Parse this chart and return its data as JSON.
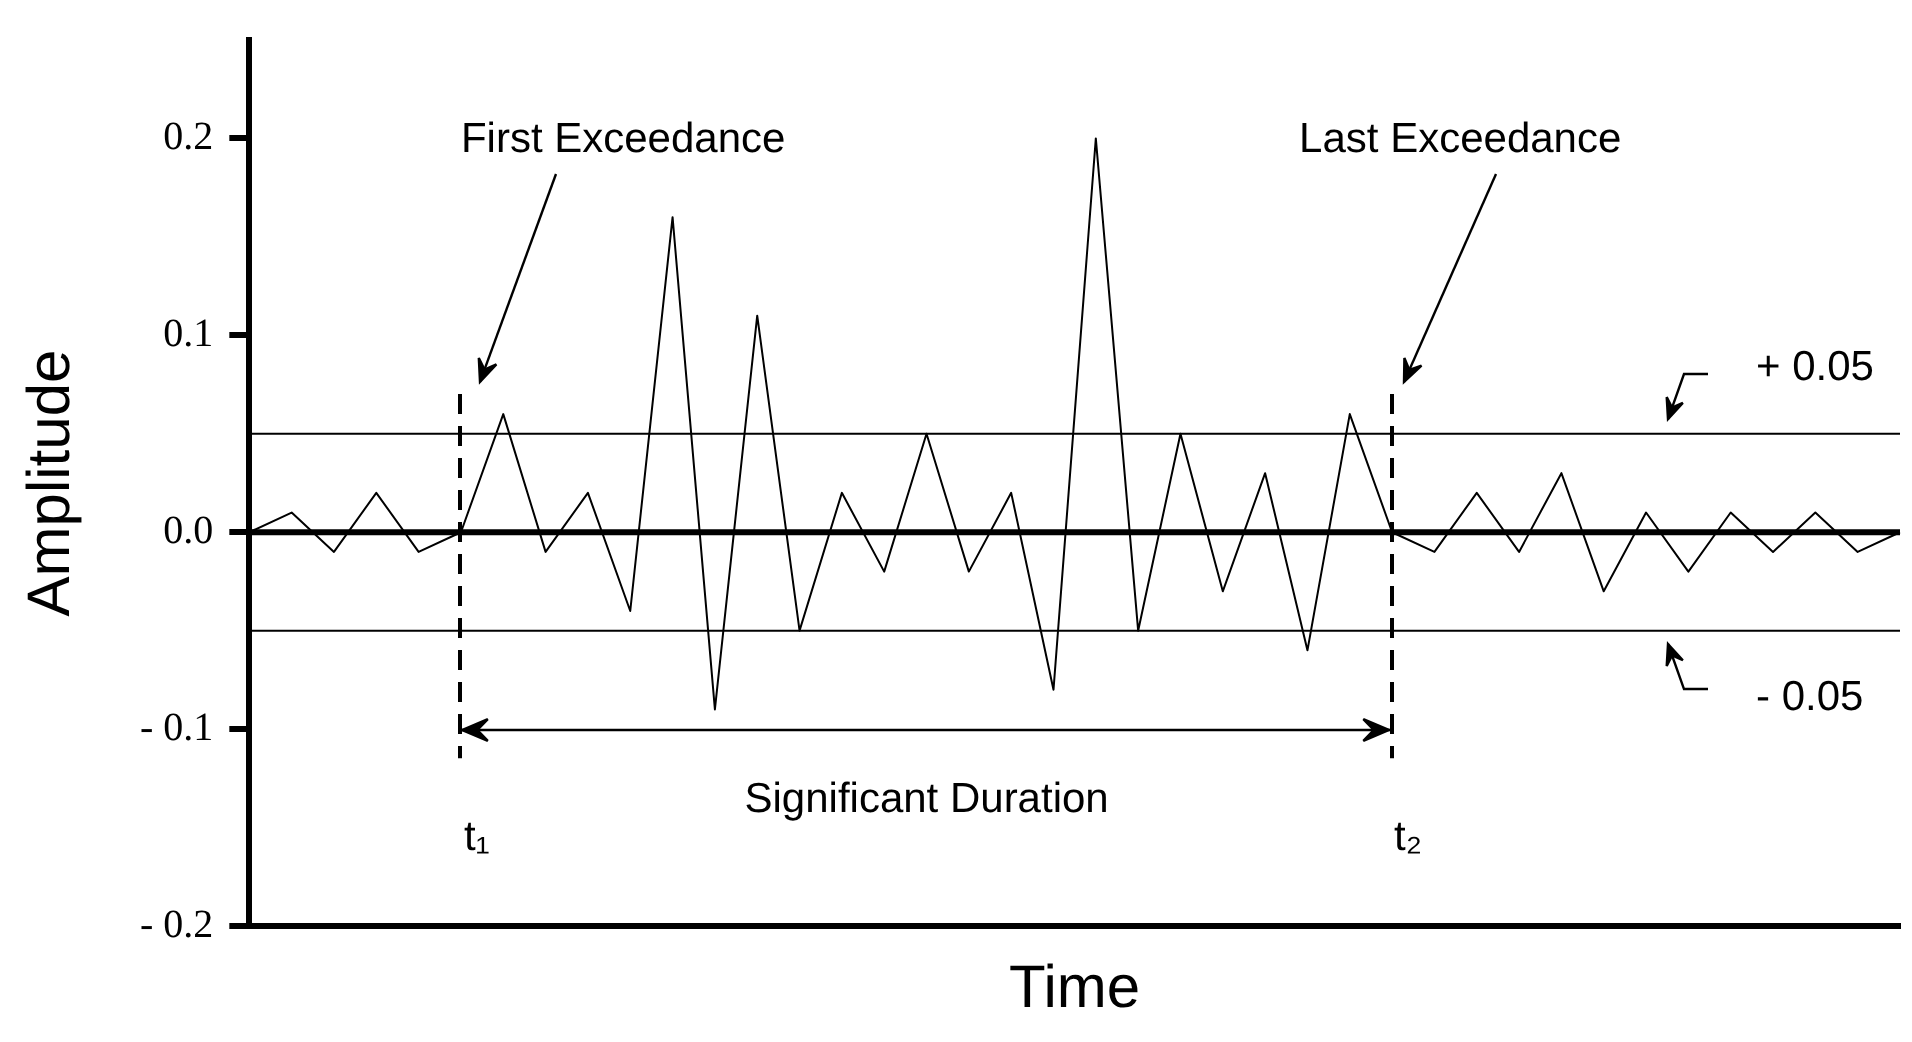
{
  "chart_data": {
    "type": "line",
    "xlabel": "Time",
    "ylabel": "Amplitude",
    "categories": [
      null,
      null,
      null,
      null,
      null,
      null,
      null,
      null,
      null,
      null,
      null,
      null,
      null,
      null,
      null,
      null,
      null,
      null,
      null,
      null,
      null,
      null,
      null,
      null,
      null,
      null,
      null,
      null,
      null,
      null,
      null,
      null,
      null,
      null,
      null,
      null,
      null,
      null,
      null,
      null
    ],
    "values": [
      0,
      0.01,
      -0.01,
      0.02,
      -0.01,
      0,
      0.06,
      -0.01,
      0.02,
      -0.04,
      0.16,
      -0.09,
      0.11,
      -0.05,
      0.02,
      -0.02,
      0.05,
      -0.02,
      0.02,
      -0.08,
      0.2,
      -0.05,
      0.05,
      -0.03,
      0.03,
      -0.06,
      0.06,
      0,
      -0.01,
      0.02,
      -0.01,
      0.03,
      -0.03,
      0.01,
      -0.02,
      0.01,
      -0.01,
      0.01,
      -0.01,
      0
    ],
    "color": "#000000",
    "marker": "none",
    "line_style": "solid",
    "grid": false,
    "legend": false,
    "tick_labels": "y",
    "ylim": [
      -0.2,
      0.25
    ],
    "yticks": [
      {
        "value": -0.2,
        "label": "- 0.2"
      },
      {
        "value": -0.1,
        "label": "- 0.1"
      },
      {
        "value": 0,
        "label": "0.0"
      },
      0.1,
      0.2
    ],
    "ref_lines": [
      {
        "axis": "y",
        "value": 0.05,
        "label": "+ 0.05",
        "color": "#000000"
      },
      {
        "axis": "y",
        "value": -0.05,
        "label": "- 0.05",
        "color": "#000000"
      },
      {
        "axis": "y",
        "value": 0,
        "color": "#000000"
      }
    ],
    "annotations": [
      "First Exceedance",
      "Last Exceedance",
      "Significant Duration",
      "t₁",
      "t₂"
    ]
  }
}
